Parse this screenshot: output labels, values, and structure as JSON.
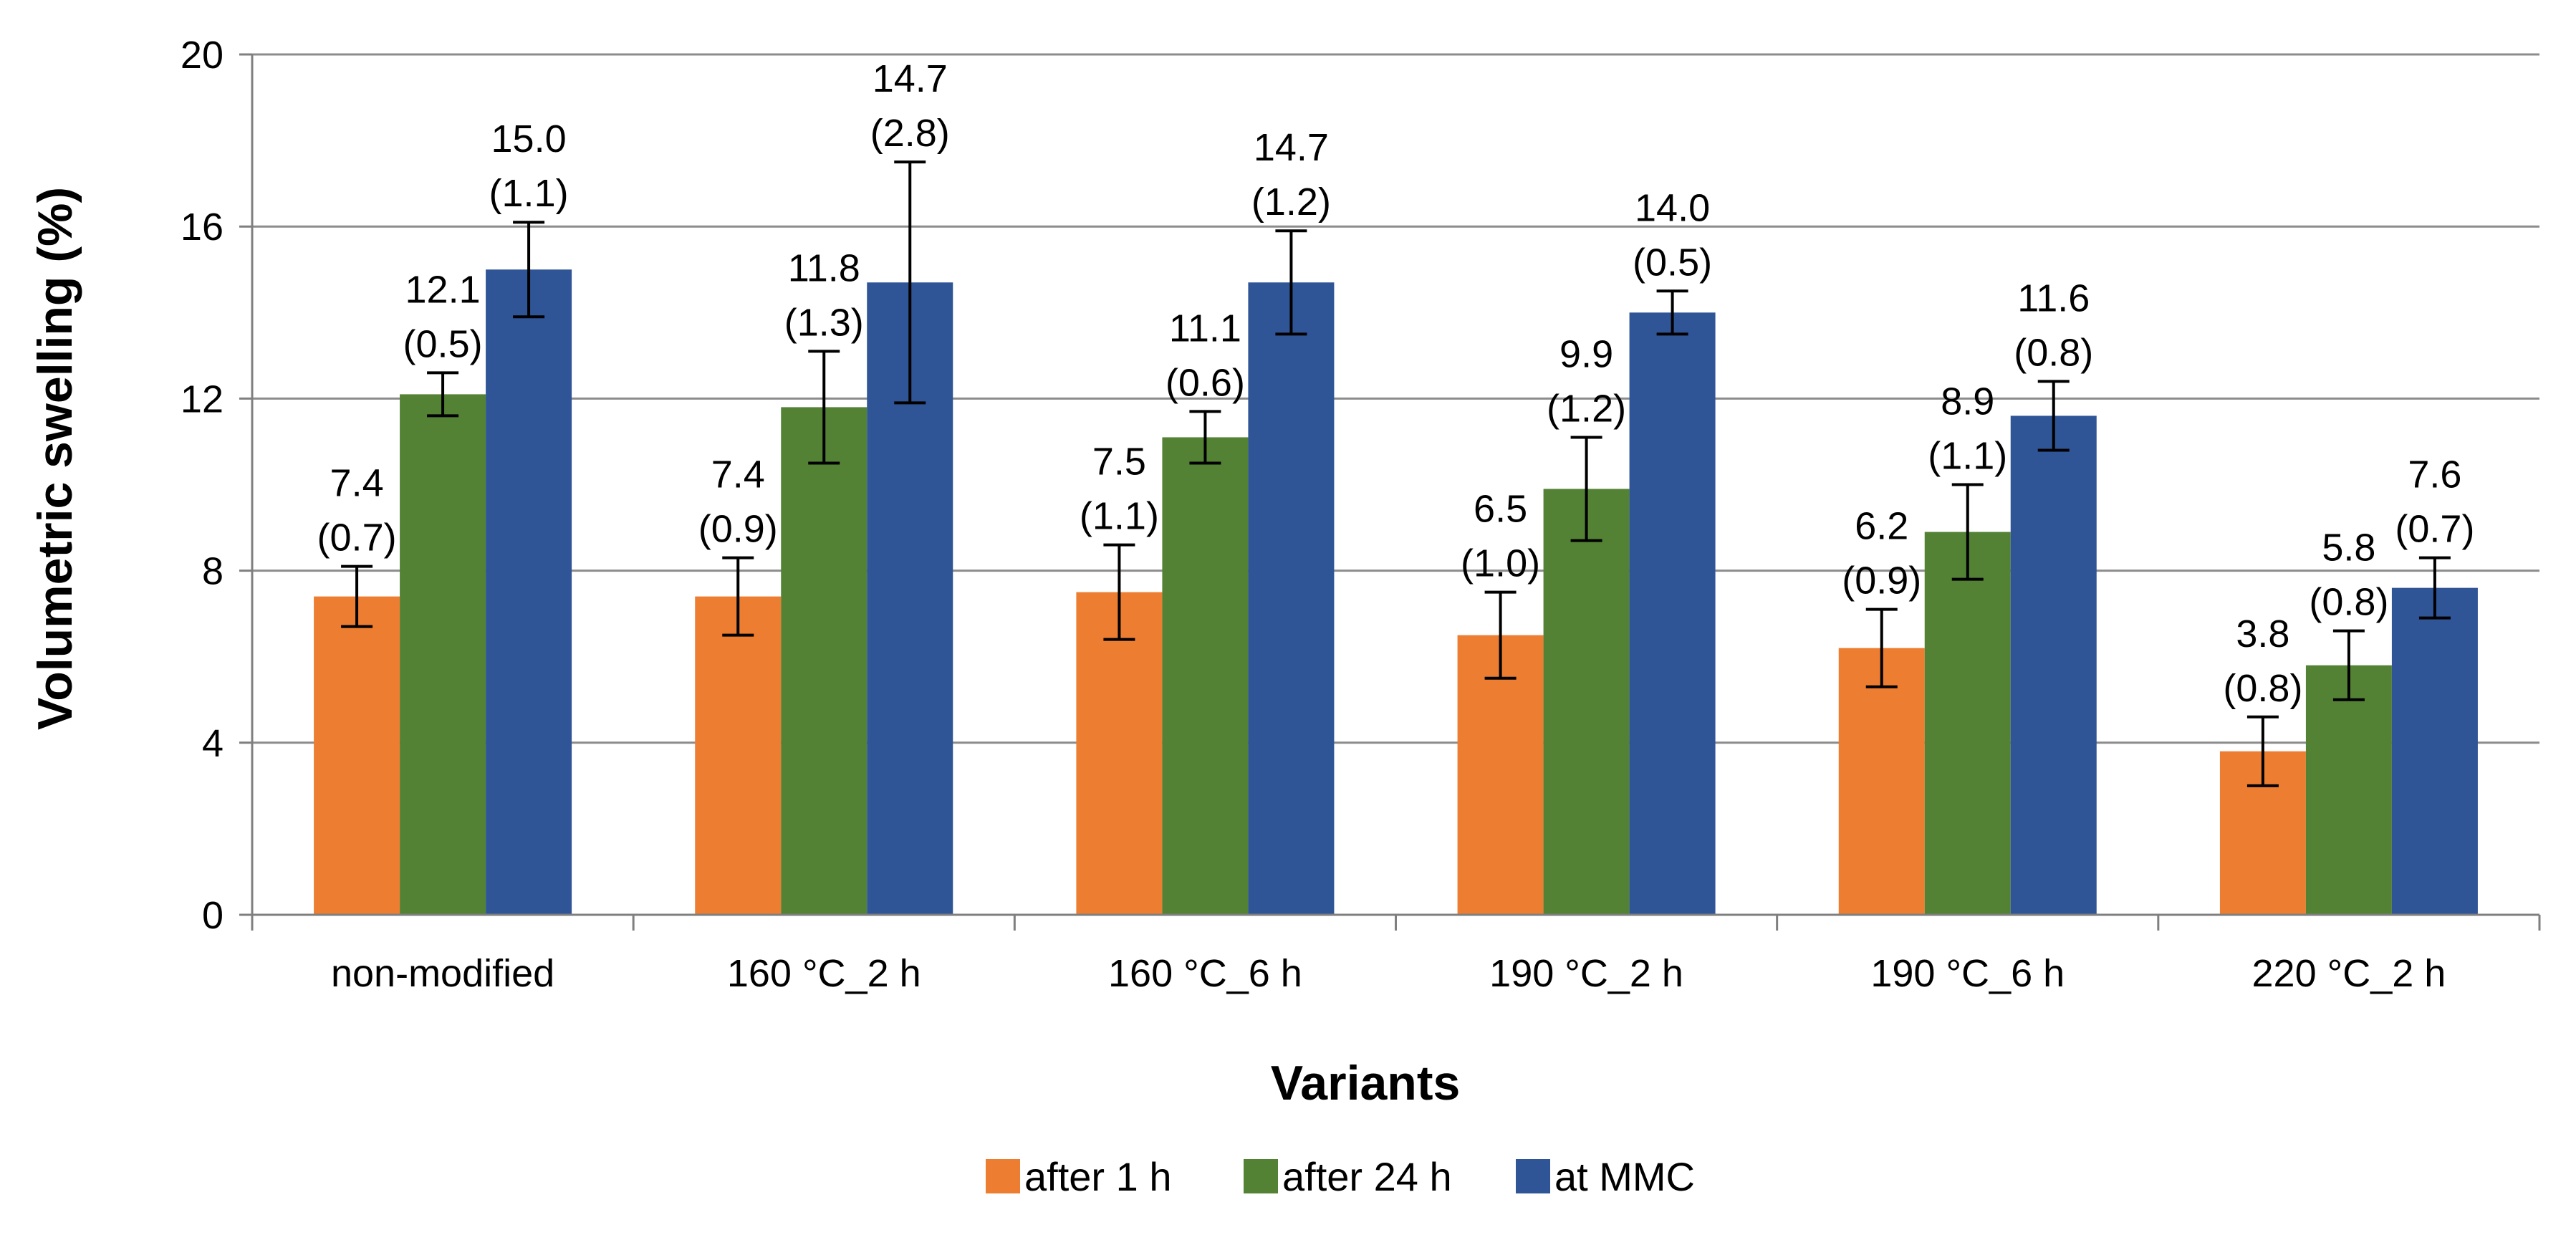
{
  "chart_data": {
    "type": "bar",
    "title": "",
    "xlabel": "Variants",
    "ylabel": "Volumetric swelling (%)",
    "ylim": [
      0,
      20
    ],
    "yticks": [
      0,
      4,
      8,
      12,
      16,
      20
    ],
    "grid": true,
    "legend_position": "bottom",
    "categories": [
      "non-modified",
      "160 °C_2 h",
      "160 °C_6 h",
      "190 °C_2 h",
      "190 °C_6 h",
      "220 °C_2 h"
    ],
    "series": [
      {
        "name": "after 1 h",
        "color": "#ED7D31",
        "values": [
          7.4,
          7.4,
          7.5,
          6.5,
          6.2,
          3.8
        ],
        "errors": [
          0.7,
          0.9,
          1.1,
          1.0,
          0.9,
          0.8
        ],
        "labels": [
          "7.4",
          "7.4",
          "7.5",
          "6.5",
          "6.2",
          "3.8"
        ],
        "error_labels": [
          "(0.7)",
          "(0.9)",
          "(1.1)",
          "(1.0)",
          "(0.9)",
          "(0.8)"
        ]
      },
      {
        "name": "after 24 h",
        "color": "#548235",
        "values": [
          12.1,
          11.8,
          11.1,
          9.9,
          8.9,
          5.8
        ],
        "errors": [
          0.5,
          1.3,
          0.6,
          1.2,
          1.1,
          0.8
        ],
        "labels": [
          "12.1",
          "11.8",
          "11.1",
          "9.9",
          "8.9",
          "5.8"
        ],
        "error_labels": [
          "(0.5)",
          "(1.3)",
          "(0.6)",
          "(1.2)",
          "(1.1)",
          "(0.8)"
        ]
      },
      {
        "name": "at MMC",
        "color": "#2F5597",
        "values": [
          15.0,
          14.7,
          14.7,
          14.0,
          11.6,
          7.6
        ],
        "errors": [
          1.1,
          2.8,
          1.2,
          0.5,
          0.8,
          0.7
        ],
        "labels": [
          "15.0",
          "14.7",
          "14.7",
          "14.0",
          "11.6",
          "7.6"
        ],
        "error_labels": [
          "(1.1)",
          "(2.8)",
          "(1.2)",
          "(0.5)",
          "(0.8)",
          "(0.7)"
        ]
      }
    ]
  }
}
